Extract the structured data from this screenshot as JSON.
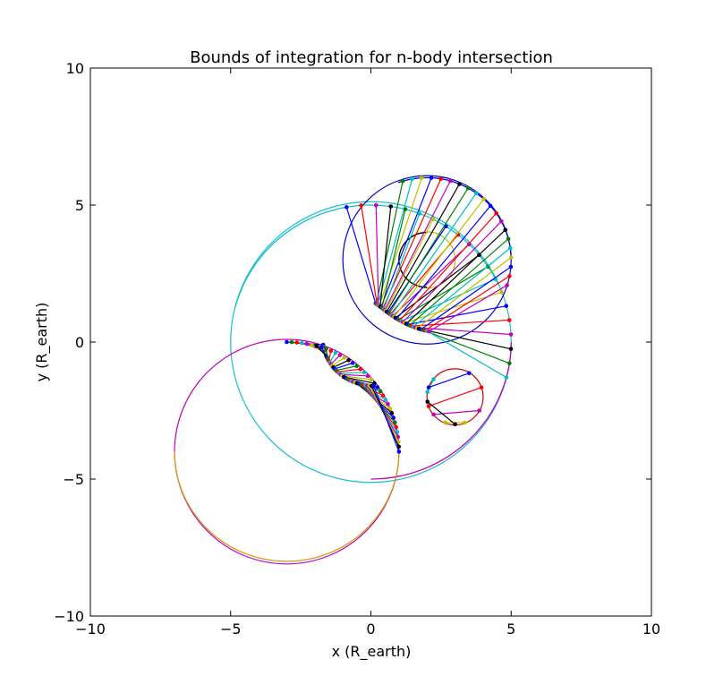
{
  "chart_data": {
    "type": "line",
    "title": "Bounds of integration for n-body intersection",
    "xlabel": "x (R_earth)",
    "ylabel": "y (R_earth)",
    "xlim": [
      -10,
      10
    ],
    "ylim": [
      -10,
      10
    ],
    "xticks": [
      -10,
      -5,
      0,
      5,
      10
    ],
    "yticks": [
      -10,
      -5,
      0,
      5,
      10
    ],
    "xtick_labels": [
      "−10",
      "−5",
      "0",
      "5",
      "10"
    ],
    "ytick_labels": [
      "−10",
      "−5",
      "0",
      "5",
      "10"
    ],
    "grid": false,
    "legend": "none",
    "palette": [
      "#0000ff",
      "#008000",
      "#ff0000",
      "#00bfbf",
      "#bf00bf",
      "#bfbf00",
      "#000000"
    ],
    "circles": [
      {
        "cx": 0,
        "cy": 0,
        "r": 5,
        "color": "#17becf"
      },
      {
        "cx": 2,
        "cy": 3,
        "r": 3,
        "color": "#0000cc"
      },
      {
        "cx": 2,
        "cy": 3,
        "r": 1,
        "color": "#bfbf00"
      },
      {
        "cx": -3,
        "cy": -4,
        "r": 4,
        "color": "#bf00bf"
      },
      {
        "cx": 3,
        "cy": -2,
        "r": 1,
        "color": "#cc0000"
      }
    ],
    "arcs": [
      {
        "cx": 0,
        "cy": 0,
        "r": 5,
        "from_deg": 25,
        "to_deg": 165,
        "color": "#17becf"
      },
      {
        "cx": 2,
        "cy": 3,
        "r": 3,
        "from_deg": 0,
        "to_deg": 110,
        "color": "#0000cc"
      },
      {
        "cx": 0,
        "cy": 0,
        "r": 5,
        "from_deg": -90,
        "to_deg": 0,
        "color": "#bf00bf"
      },
      {
        "cx": -3,
        "cy": -4,
        "r": 4,
        "from_deg": 180,
        "to_deg": 360,
        "color": "#d4a017"
      },
      {
        "cx": 2,
        "cy": 3,
        "r": 1,
        "from_deg": 90,
        "to_deg": 270,
        "color": "#000000"
      }
    ],
    "chord_groups": [
      {
        "name_circle": "upper",
        "cx": 2,
        "cy": 3,
        "r": 3,
        "chord_count": 40,
        "lens_side_start_deg": 113.6,
        "lens_side_end_deg": 246.4,
        "lens_far_start_deg": 110,
        "lens_far_end_deg": -18
      },
      {
        "name_circle": "lower-left",
        "cx": -3,
        "cy": -4,
        "r": 4,
        "chord_count": 36,
        "lens_start_deg": 90,
        "lens_end_deg": 0
      },
      {
        "name_circle": "small",
        "cx": 3,
        "cy": -2,
        "r": 1,
        "chord_count": 6
      }
    ]
  }
}
